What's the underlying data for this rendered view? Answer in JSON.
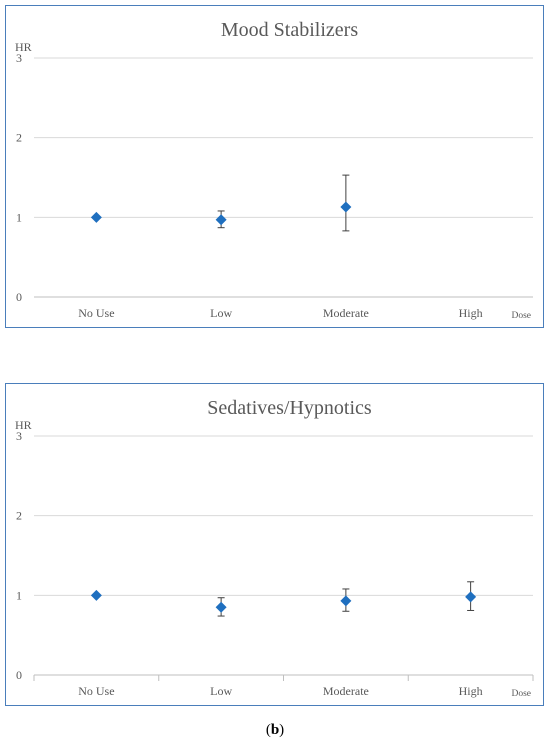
{
  "chart_data": [
    {
      "type": "scatter",
      "title": "Mood Stabilizers",
      "ylabel": "HR",
      "xlabel": "Dose",
      "categories": [
        "No Use",
        "Low",
        "Moderate",
        "High"
      ],
      "ylim": [
        0,
        3
      ],
      "yticks": [
        "0",
        "1",
        "2",
        "3"
      ],
      "grid": true,
      "marker_color": "#1f6fbf",
      "points": [
        {
          "x": "No Use",
          "y": 1.0,
          "lo": null,
          "hi": null
        },
        {
          "x": "Low",
          "y": 0.97,
          "lo": 0.87,
          "hi": 1.08
        },
        {
          "x": "Moderate",
          "y": 1.13,
          "lo": 0.83,
          "hi": 1.53
        }
      ],
      "x_category_ticks": false
    },
    {
      "type": "scatter",
      "title": "Sedatives/Hypnotics",
      "ylabel": "HR",
      "xlabel": "Dose",
      "categories": [
        "No Use",
        "Low",
        "Moderate",
        "High"
      ],
      "ylim": [
        0,
        3
      ],
      "yticks": [
        "0",
        "1",
        "2",
        "3"
      ],
      "grid": true,
      "marker_color": "#1f6fbf",
      "points": [
        {
          "x": "No Use",
          "y": 1.0,
          "lo": null,
          "hi": null
        },
        {
          "x": "Low",
          "y": 0.85,
          "lo": 0.74,
          "hi": 0.97
        },
        {
          "x": "Moderate",
          "y": 0.93,
          "lo": 0.8,
          "hi": 1.08
        },
        {
          "x": "High",
          "y": 0.98,
          "lo": 0.81,
          "hi": 1.17
        }
      ],
      "x_category_ticks": true
    }
  ],
  "caption": {
    "open": "(",
    "label": "b",
    "close": ")"
  }
}
